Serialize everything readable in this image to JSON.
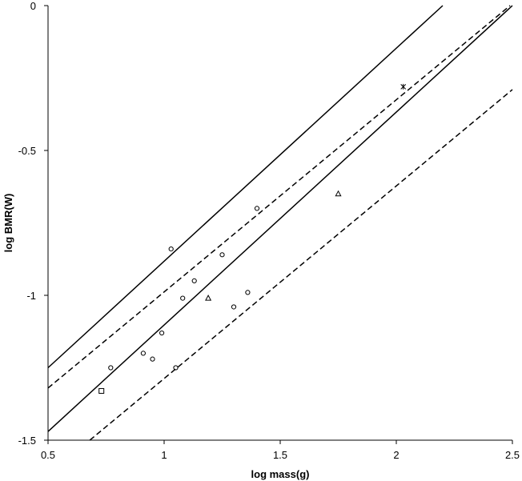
{
  "chart_data": {
    "type": "scatter",
    "xlabel": "log mass(g)",
    "ylabel": "log BMR(W)",
    "xlim": [
      0.5,
      2.5
    ],
    "ylim": [
      -1.5,
      0
    ],
    "x_ticks": [
      0.5,
      1,
      1.5,
      2,
      2.5
    ],
    "x_tick_labels": [
      "0.5",
      "1",
      "1.5",
      "2",
      "2.5"
    ],
    "y_ticks": [
      -1.5,
      -1,
      -0.5,
      0
    ],
    "y_tick_labels": [
      "-1.5",
      "-1",
      "-0.5",
      "0"
    ],
    "grid": false,
    "legend": "none",
    "lines": [
      {
        "style": "solid",
        "points": [
          [
            0.5,
            -1.25
          ],
          [
            2.2,
            0.0
          ]
        ]
      },
      {
        "style": "dashed",
        "points": [
          [
            0.5,
            -1.32
          ],
          [
            2.49,
            0.0
          ]
        ]
      },
      {
        "style": "solid",
        "points": [
          [
            0.5,
            -1.47
          ],
          [
            2.5,
            0.0
          ]
        ]
      },
      {
        "style": "dashed",
        "points": [
          [
            0.68,
            -1.5
          ],
          [
            2.5,
            -0.29
          ]
        ]
      }
    ],
    "series": [
      {
        "marker": "circle",
        "x": [
          0.77,
          0.91,
          0.95,
          0.99,
          1.03,
          1.05,
          1.08,
          1.13,
          1.25,
          1.3,
          1.36,
          1.4
        ],
        "y": [
          -1.25,
          -1.2,
          -1.22,
          -1.13,
          -0.84,
          -1.25,
          -1.01,
          -0.95,
          -0.86,
          -1.04,
          -0.99,
          -0.7
        ]
      },
      {
        "marker": "triangle",
        "x": [
          1.19,
          1.75
        ],
        "y": [
          -1.01,
          -0.65
        ]
      },
      {
        "marker": "square",
        "x": [
          0.73
        ],
        "y": [
          -1.33
        ]
      },
      {
        "marker": "star",
        "x": [
          2.03
        ],
        "y": [
          -0.28
        ]
      }
    ]
  }
}
